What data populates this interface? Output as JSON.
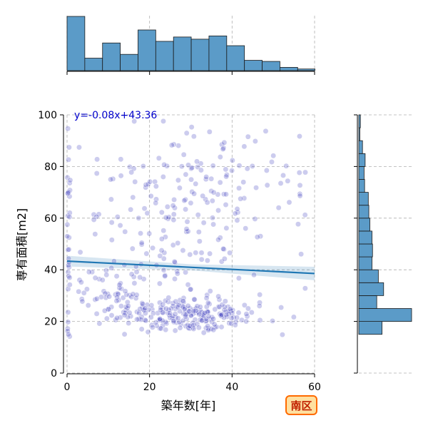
{
  "chart_data": {
    "type": "scatter",
    "xlabel": "築年数[年]",
    "ylabel": "専有面積[m2]",
    "xlim": [
      0,
      60
    ],
    "ylim": [
      0,
      100
    ],
    "xticks": [
      0,
      20,
      40,
      60
    ],
    "yticks": [
      0,
      20,
      40,
      60,
      80,
      100
    ],
    "grid": true,
    "regression": {
      "label": "y=-0.08x+43.36",
      "slope": -0.08,
      "intercept": 43.36,
      "x_range": [
        0,
        60
      ],
      "ci_halfwidth": 2.6,
      "color": "#1f77b4"
    },
    "point_color": "#3333bb",
    "top_histogram": {
      "bin_edges": [
        0,
        4.3,
        8.6,
        12.9,
        17.2,
        21.5,
        25.8,
        30.1,
        34.4,
        38.7,
        43.0,
        47.3,
        51.6,
        55.9,
        60.1
      ],
      "relative_heights": [
        1.0,
        0.23,
        0.51,
        0.3,
        0.75,
        0.54,
        0.62,
        0.58,
        0.64,
        0.46,
        0.19,
        0.17,
        0.06,
        0.03
      ],
      "color": "#5b9bc8"
    },
    "right_histogram": {
      "bin_edges": [
        15,
        20,
        25,
        30,
        35,
        40,
        45,
        50,
        55,
        60,
        65,
        70,
        75,
        80,
        85,
        90,
        95,
        100
      ],
      "relative_heights": [
        0.44,
        1.0,
        0.34,
        0.47,
        0.37,
        0.25,
        0.26,
        0.25,
        0.21,
        0.19,
        0.18,
        0.11,
        0.1,
        0.12,
        0.07,
        0.02,
        0.03
      ],
      "color": "#5b9bc8"
    },
    "badge": {
      "label": "南区",
      "fill": "#ffe0a0",
      "border": "#ff6a00",
      "text_color": "#c02000"
    },
    "point_seed": 20240601,
    "point_groups": [
      {
        "n": 220,
        "x_mean": 30,
        "x_sd": 9,
        "y_mean": 23,
        "y_sd": 3.5
      },
      {
        "n": 60,
        "x_mean": 12,
        "x_sd": 5,
        "y_mean": 30,
        "y_sd": 5
      },
      {
        "n": 170,
        "x_mean": 30,
        "x_sd": 14,
        "y_mean": 58,
        "y_sd": 15
      },
      {
        "n": 45,
        "x_mean": 33,
        "x_sd": 12,
        "y_mean": 82,
        "y_sd": 8
      },
      {
        "n": 30,
        "x_mean": 0.3,
        "x_sd": 0.25,
        "y_mean": 50,
        "y_sd": 22
      }
    ]
  }
}
